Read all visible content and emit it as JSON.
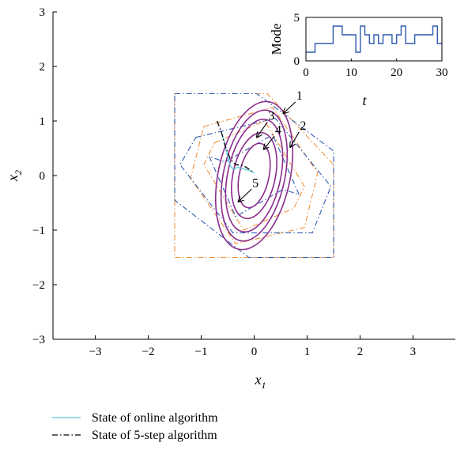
{
  "chart_data": [
    {
      "type": "line",
      "title": "",
      "xlabel": "x",
      "xlabel_sub": "1",
      "ylabel": "x",
      "ylabel_sub": "2",
      "xlim": [
        -3.8,
        3.8
      ],
      "ylim": [
        -3,
        3
      ],
      "xticks": [
        -3,
        -2,
        -1,
        0,
        1,
        2,
        3
      ],
      "yticks": [
        -3,
        -2,
        -1,
        0,
        1,
        2,
        3
      ],
      "xtick_labels": [
        "−3",
        "−2",
        "−1",
        "0",
        "1",
        "2",
        "3"
      ],
      "ytick_labels": [
        "−3",
        "−2",
        "−1",
        "0",
        "1",
        "2",
        "3"
      ],
      "grid": false,
      "legend_position": "bottom-left, below plot",
      "legend": [
        {
          "label": "State of online algorithm",
          "style": "solid",
          "color": "#5bc7d6"
        },
        {
          "label": "State of 5-step algorithm",
          "style": "dash-dot",
          "color": "#000000"
        }
      ],
      "regions": [
        {
          "style": "dash-dot",
          "color": "#f0903a",
          "points": [
            [
              -1.5,
              1.5
            ],
            [
              0.25,
              1.5
            ],
            [
              1.5,
              0.2
            ],
            [
              1.5,
              -1.5
            ],
            [
              -1.5,
              -1.5
            ]
          ]
        },
        {
          "style": "dash-dot",
          "color": "#2f5bb0",
          "points": [
            [
              -1.5,
              1.5
            ],
            [
              0.05,
              1.5
            ],
            [
              1.5,
              0.45
            ],
            [
              1.5,
              -1.5
            ],
            [
              -0.1,
              -1.5
            ],
            [
              -1.5,
              -0.45
            ]
          ]
        },
        {
          "style": "dash-dot",
          "color": "#f0903a",
          "points": [
            [
              -0.95,
              0.9
            ],
            [
              0.35,
              1.25
            ],
            [
              1.2,
              0.05
            ],
            [
              0.95,
              -0.95
            ],
            [
              -0.35,
              -1.25
            ],
            [
              -1.2,
              -0.05
            ]
          ]
        },
        {
          "style": "dash-dot",
          "color": "#2f5bb0",
          "points": [
            [
              -1.1,
              0.7
            ],
            [
              0.4,
              1.05
            ],
            [
              1.45,
              -0.2
            ],
            [
              1.1,
              -1.05
            ],
            [
              -0.4,
              -1.05
            ],
            [
              -1.4,
              0.2
            ]
          ]
        },
        {
          "style": "dash-dot",
          "color": "#f0903a",
          "points": [
            [
              -0.75,
              0.6
            ],
            [
              0.2,
              1.0
            ],
            [
              0.95,
              -0.2
            ],
            [
              0.75,
              -0.6
            ],
            [
              -0.2,
              -1.0
            ],
            [
              -0.95,
              0.2
            ]
          ]
        },
        {
          "style": "dash-dot",
          "color": "#2f5bb0",
          "points": [
            [
              -0.55,
              0.25
            ],
            [
              0.35,
              0.75
            ],
            [
              0.85,
              -0.35
            ],
            [
              0.55,
              -0.25
            ],
            [
              -0.35,
              -0.75
            ],
            [
              -0.85,
              0.35
            ]
          ]
        }
      ],
      "ellipses": [
        {
          "label": "1",
          "center": [
            0.0,
            0.0
          ],
          "rx": 0.68,
          "ry": 1.38,
          "tilt_deg": -12,
          "color": "#8b2d8e"
        },
        {
          "label": "2",
          "center": [
            0.0,
            0.0
          ],
          "rx": 0.58,
          "ry": 1.22,
          "tilt_deg": -12,
          "color": "#8b2d8e"
        },
        {
          "label": "3",
          "center": [
            0.0,
            0.0
          ],
          "rx": 0.5,
          "ry": 1.05,
          "tilt_deg": -12,
          "color": "#8b2d8e"
        },
        {
          "label": "4",
          "center": [
            0.0,
            0.0
          ],
          "rx": 0.4,
          "ry": 0.8,
          "tilt_deg": -12,
          "color": "#8b2d8e"
        },
        {
          "label": "5",
          "center": [
            0.0,
            0.0
          ],
          "rx": 0.28,
          "ry": 0.6,
          "tilt_deg": -12,
          "color": "#8b2d8e"
        }
      ],
      "callouts": [
        {
          "label": "1",
          "tail": [
            0.78,
            1.35
          ],
          "head": [
            0.55,
            1.14
          ]
        },
        {
          "label": "2",
          "tail": [
            0.85,
            0.8
          ],
          "head": [
            0.68,
            0.52
          ]
        },
        {
          "label": "3",
          "tail": [
            0.25,
            0.98
          ],
          "head": [
            0.05,
            0.7
          ]
        },
        {
          "label": "4",
          "tail": [
            0.38,
            0.72
          ],
          "head": [
            0.18,
            0.48
          ]
        },
        {
          "label": "5",
          "tail": [
            -0.05,
            -0.25
          ],
          "head": [
            -0.3,
            -0.48
          ]
        }
      ],
      "series": [
        {
          "name": "State of online algorithm",
          "style": "solid",
          "color": "#5bc7d6",
          "x": [
            -0.6,
            -0.55,
            -0.5,
            -0.45,
            -0.4,
            -0.3,
            -0.2,
            -0.1,
            0.0
          ],
          "y": [
            0.75,
            0.55,
            0.35,
            0.18,
            0.12,
            0.15,
            0.12,
            0.1,
            0.05
          ]
        },
        {
          "name": "State of 5-step algorithm",
          "style": "dash-dot",
          "color": "#000000",
          "x": [
            -0.7,
            -0.62,
            -0.55,
            -0.45,
            -0.35,
            -0.2,
            -0.1,
            0.0
          ],
          "y": [
            1.0,
            0.8,
            0.55,
            0.3,
            0.2,
            0.18,
            0.12,
            0.05
          ]
        }
      ]
    },
    {
      "type": "line",
      "title": "",
      "xlabel": "t",
      "ylabel": "Mode",
      "xlim": [
        0,
        30
      ],
      "ylim": [
        0,
        5
      ],
      "xticks": [
        0,
        10,
        20,
        30
      ],
      "yticks": [
        0,
        5
      ],
      "xtick_labels": [
        "0",
        "10",
        "20",
        "30"
      ],
      "ytick_labels": [
        "0",
        "5"
      ],
      "grid": false,
      "step": true,
      "color": "#2f5bb0",
      "x": [
        0,
        2,
        4,
        6,
        8,
        10,
        11,
        12,
        13,
        14,
        15,
        16,
        17,
        18,
        19,
        20,
        21,
        22,
        23,
        24,
        25,
        26,
        28,
        29,
        30
      ],
      "y": [
        1,
        2,
        2,
        4,
        3,
        3,
        1,
        4,
        3,
        2,
        3,
        2,
        3,
        3,
        2,
        3,
        4,
        2,
        2,
        3,
        3,
        3,
        4,
        2,
        2
      ]
    }
  ]
}
